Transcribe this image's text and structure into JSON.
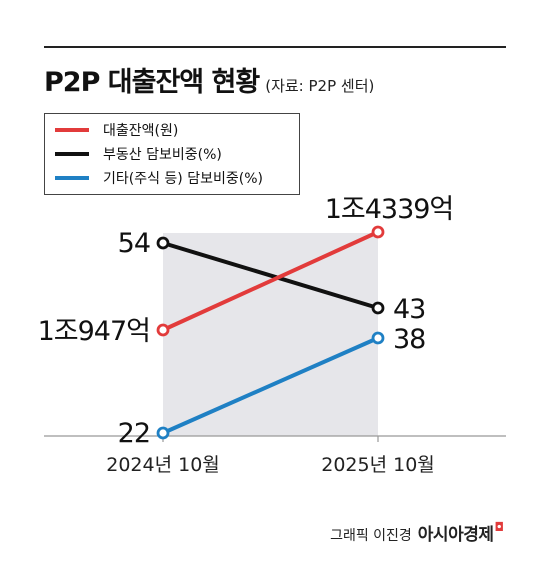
{
  "header": {
    "title": "P2P 대출잔액 현황",
    "source": "(자료: P2P 센터)"
  },
  "legend": [
    {
      "label": "대출잔액(원)",
      "color": "#e23b3b"
    },
    {
      "label": "부동산 담보비중(%)",
      "color": "#111111"
    },
    {
      "label": "기타(주식 등) 담보비중(%)",
      "color": "#1f80c4"
    }
  ],
  "chart_data": {
    "type": "line",
    "categories": [
      "2024년 10월",
      "2025년 10월"
    ],
    "series": [
      {
        "name": "대출잔액(원)",
        "values": [
          10947,
          14339
        ],
        "labels": [
          "1조947억",
          "1조4339억"
        ],
        "color": "#e23b3b"
      },
      {
        "name": "부동산 담보비중(%)",
        "values": [
          54,
          43
        ],
        "labels": [
          "54",
          "43"
        ],
        "color": "#111111"
      },
      {
        "name": "기타(주식 등) 담보비중(%)",
        "values": [
          22,
          38
        ],
        "labels": [
          "22",
          "38"
        ],
        "color": "#1f80c4"
      }
    ],
    "shaded_band": true,
    "grid": false,
    "legend_position": "top-left"
  },
  "footer": {
    "credit": "그래픽 이진경",
    "brand": "아시아경제"
  }
}
